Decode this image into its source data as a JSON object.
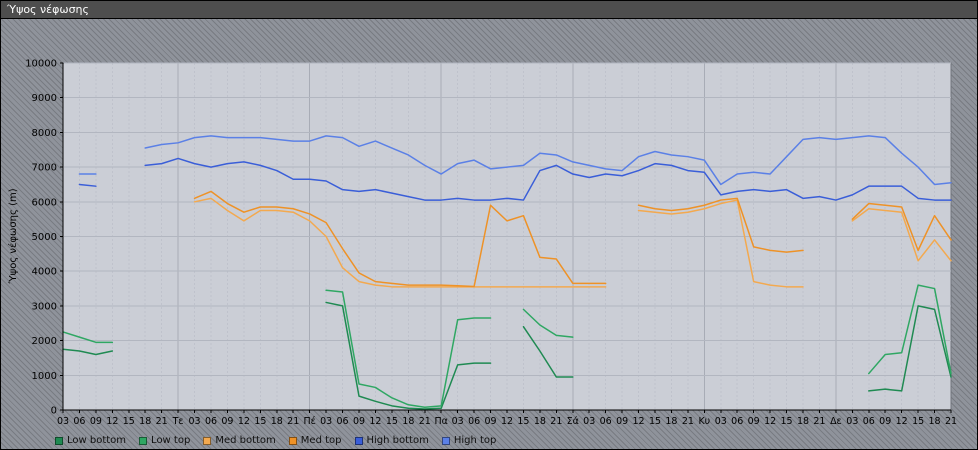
{
  "window": {
    "title": "Ύψος νέφωσης"
  },
  "colors": {
    "background": "#8f939b",
    "titlebar_bg": "#4e4e4e",
    "titlebar_text": "#ffffff",
    "plot_bg": "#cbced6",
    "plot_border": "#70747c",
    "grid_h": "#b2b6c0",
    "grid_v": "#bfc2cc",
    "grid_day": "#a8acb6",
    "axis": "#000000"
  },
  "chart_data": {
    "type": "line",
    "title": "Ύψος νέφωσης",
    "ylabel": "Ύψος νέφωσης (m)",
    "ylim": [
      0,
      10000
    ],
    "y_tick_step": 1000,
    "grid": true,
    "legend_position": "bottom",
    "x_labels": [
      "03",
      "06",
      "09",
      "12",
      "15",
      "18",
      "21",
      "Τε",
      "03",
      "06",
      "09",
      "12",
      "15",
      "18",
      "21",
      "Πέ",
      "03",
      "06",
      "09",
      "12",
      "15",
      "18",
      "21",
      "Πα",
      "03",
      "06",
      "09",
      "12",
      "15",
      "18",
      "21",
      "Σά",
      "03",
      "06",
      "09",
      "12",
      "15",
      "18",
      "21",
      "Κυ",
      "03",
      "06",
      "09",
      "12",
      "15",
      "18",
      "21",
      "Δε",
      "03",
      "06",
      "09",
      "12",
      "15",
      "18",
      "21"
    ],
    "day_label_indices": [
      7,
      15,
      23,
      31,
      39,
      47
    ],
    "series": [
      {
        "name": "Low bottom",
        "color": "#1f8a52",
        "values": [
          1750,
          1700,
          1600,
          1700,
          null,
          null,
          null,
          null,
          null,
          null,
          null,
          null,
          null,
          null,
          null,
          null,
          3100,
          3000,
          400,
          250,
          120,
          50,
          30,
          50,
          1300,
          1350,
          1350,
          null,
          2400,
          1700,
          950,
          950,
          null,
          null,
          null,
          null,
          null,
          null,
          null,
          null,
          null,
          null,
          null,
          null,
          null,
          null,
          null,
          null,
          null,
          550,
          600,
          550,
          3000,
          2900,
          950
        ]
      },
      {
        "name": "Low top",
        "color": "#2fa763",
        "values": [
          2250,
          2100,
          1950,
          1950,
          null,
          null,
          null,
          null,
          null,
          null,
          null,
          null,
          null,
          null,
          null,
          null,
          3450,
          3400,
          750,
          650,
          350,
          150,
          80,
          120,
          2600,
          2650,
          2650,
          null,
          2900,
          2450,
          2150,
          2100,
          null,
          null,
          null,
          null,
          null,
          null,
          null,
          null,
          null,
          null,
          null,
          null,
          null,
          null,
          null,
          null,
          null,
          1050,
          1600,
          1650,
          3600,
          3500,
          1050
        ]
      },
      {
        "name": "Med bottom",
        "color": "#f3a94f",
        "values": [
          null,
          null,
          null,
          null,
          null,
          null,
          null,
          null,
          6000,
          6100,
          5750,
          5450,
          5750,
          5750,
          5700,
          5450,
          5000,
          4100,
          3700,
          3600,
          3550,
          3550,
          3550,
          3550,
          3550,
          3550,
          3550,
          3550,
          3550,
          3550,
          3550,
          3550,
          3550,
          3550,
          null,
          5750,
          5700,
          5650,
          5700,
          5800,
          5950,
          6050,
          3700,
          3600,
          3550,
          3550,
          null,
          null,
          5450,
          5800,
          5750,
          5700,
          4300,
          4900,
          4300
        ]
      },
      {
        "name": "Med top",
        "color": "#ee9227",
        "values": [
          null,
          null,
          null,
          null,
          null,
          null,
          null,
          null,
          6100,
          6300,
          5950,
          5700,
          5850,
          5850,
          5800,
          5650,
          5400,
          4650,
          3950,
          3700,
          3650,
          3600,
          3600,
          3600,
          3580,
          3560,
          5900,
          5450,
          5600,
          4400,
          4350,
          3650,
          3650,
          3650,
          null,
          5900,
          5800,
          5750,
          5800,
          5900,
          6050,
          6100,
          4700,
          4600,
          4550,
          4600,
          null,
          null,
          5500,
          5950,
          5900,
          5850,
          4600,
          5600,
          4900
        ]
      },
      {
        "name": "High bottom",
        "color": "#3a5ed8",
        "values": [
          null,
          6500,
          6450,
          null,
          null,
          7050,
          7100,
          7250,
          7100,
          7000,
          7100,
          7150,
          7050,
          6900,
          6650,
          6650,
          6600,
          6350,
          6300,
          6350,
          6250,
          6150,
          6050,
          6050,
          6100,
          6050,
          6050,
          6100,
          6050,
          6900,
          7050,
          6800,
          6700,
          6800,
          6750,
          6900,
          7100,
          7050,
          6900,
          6850,
          6200,
          6300,
          6350,
          6300,
          6350,
          6100,
          6150,
          6050,
          6200,
          6450,
          6450,
          6450,
          6100,
          6050,
          6050
        ]
      },
      {
        "name": "High top",
        "color": "#5b80e6",
        "values": [
          null,
          6800,
          6800,
          null,
          null,
          7550,
          7650,
          7700,
          7850,
          7900,
          7850,
          7850,
          7850,
          7800,
          7750,
          7750,
          7900,
          7850,
          7600,
          7750,
          7550,
          7350,
          7050,
          6800,
          7100,
          7200,
          6950,
          7000,
          7050,
          7400,
          7350,
          7150,
          7050,
          6950,
          6900,
          7300,
          7450,
          7350,
          7300,
          7200,
          6500,
          6800,
          6850,
          6800,
          7300,
          7800,
          7850,
          7800,
          7850,
          7900,
          7850,
          7400,
          7000,
          6500,
          6550
        ]
      }
    ]
  }
}
